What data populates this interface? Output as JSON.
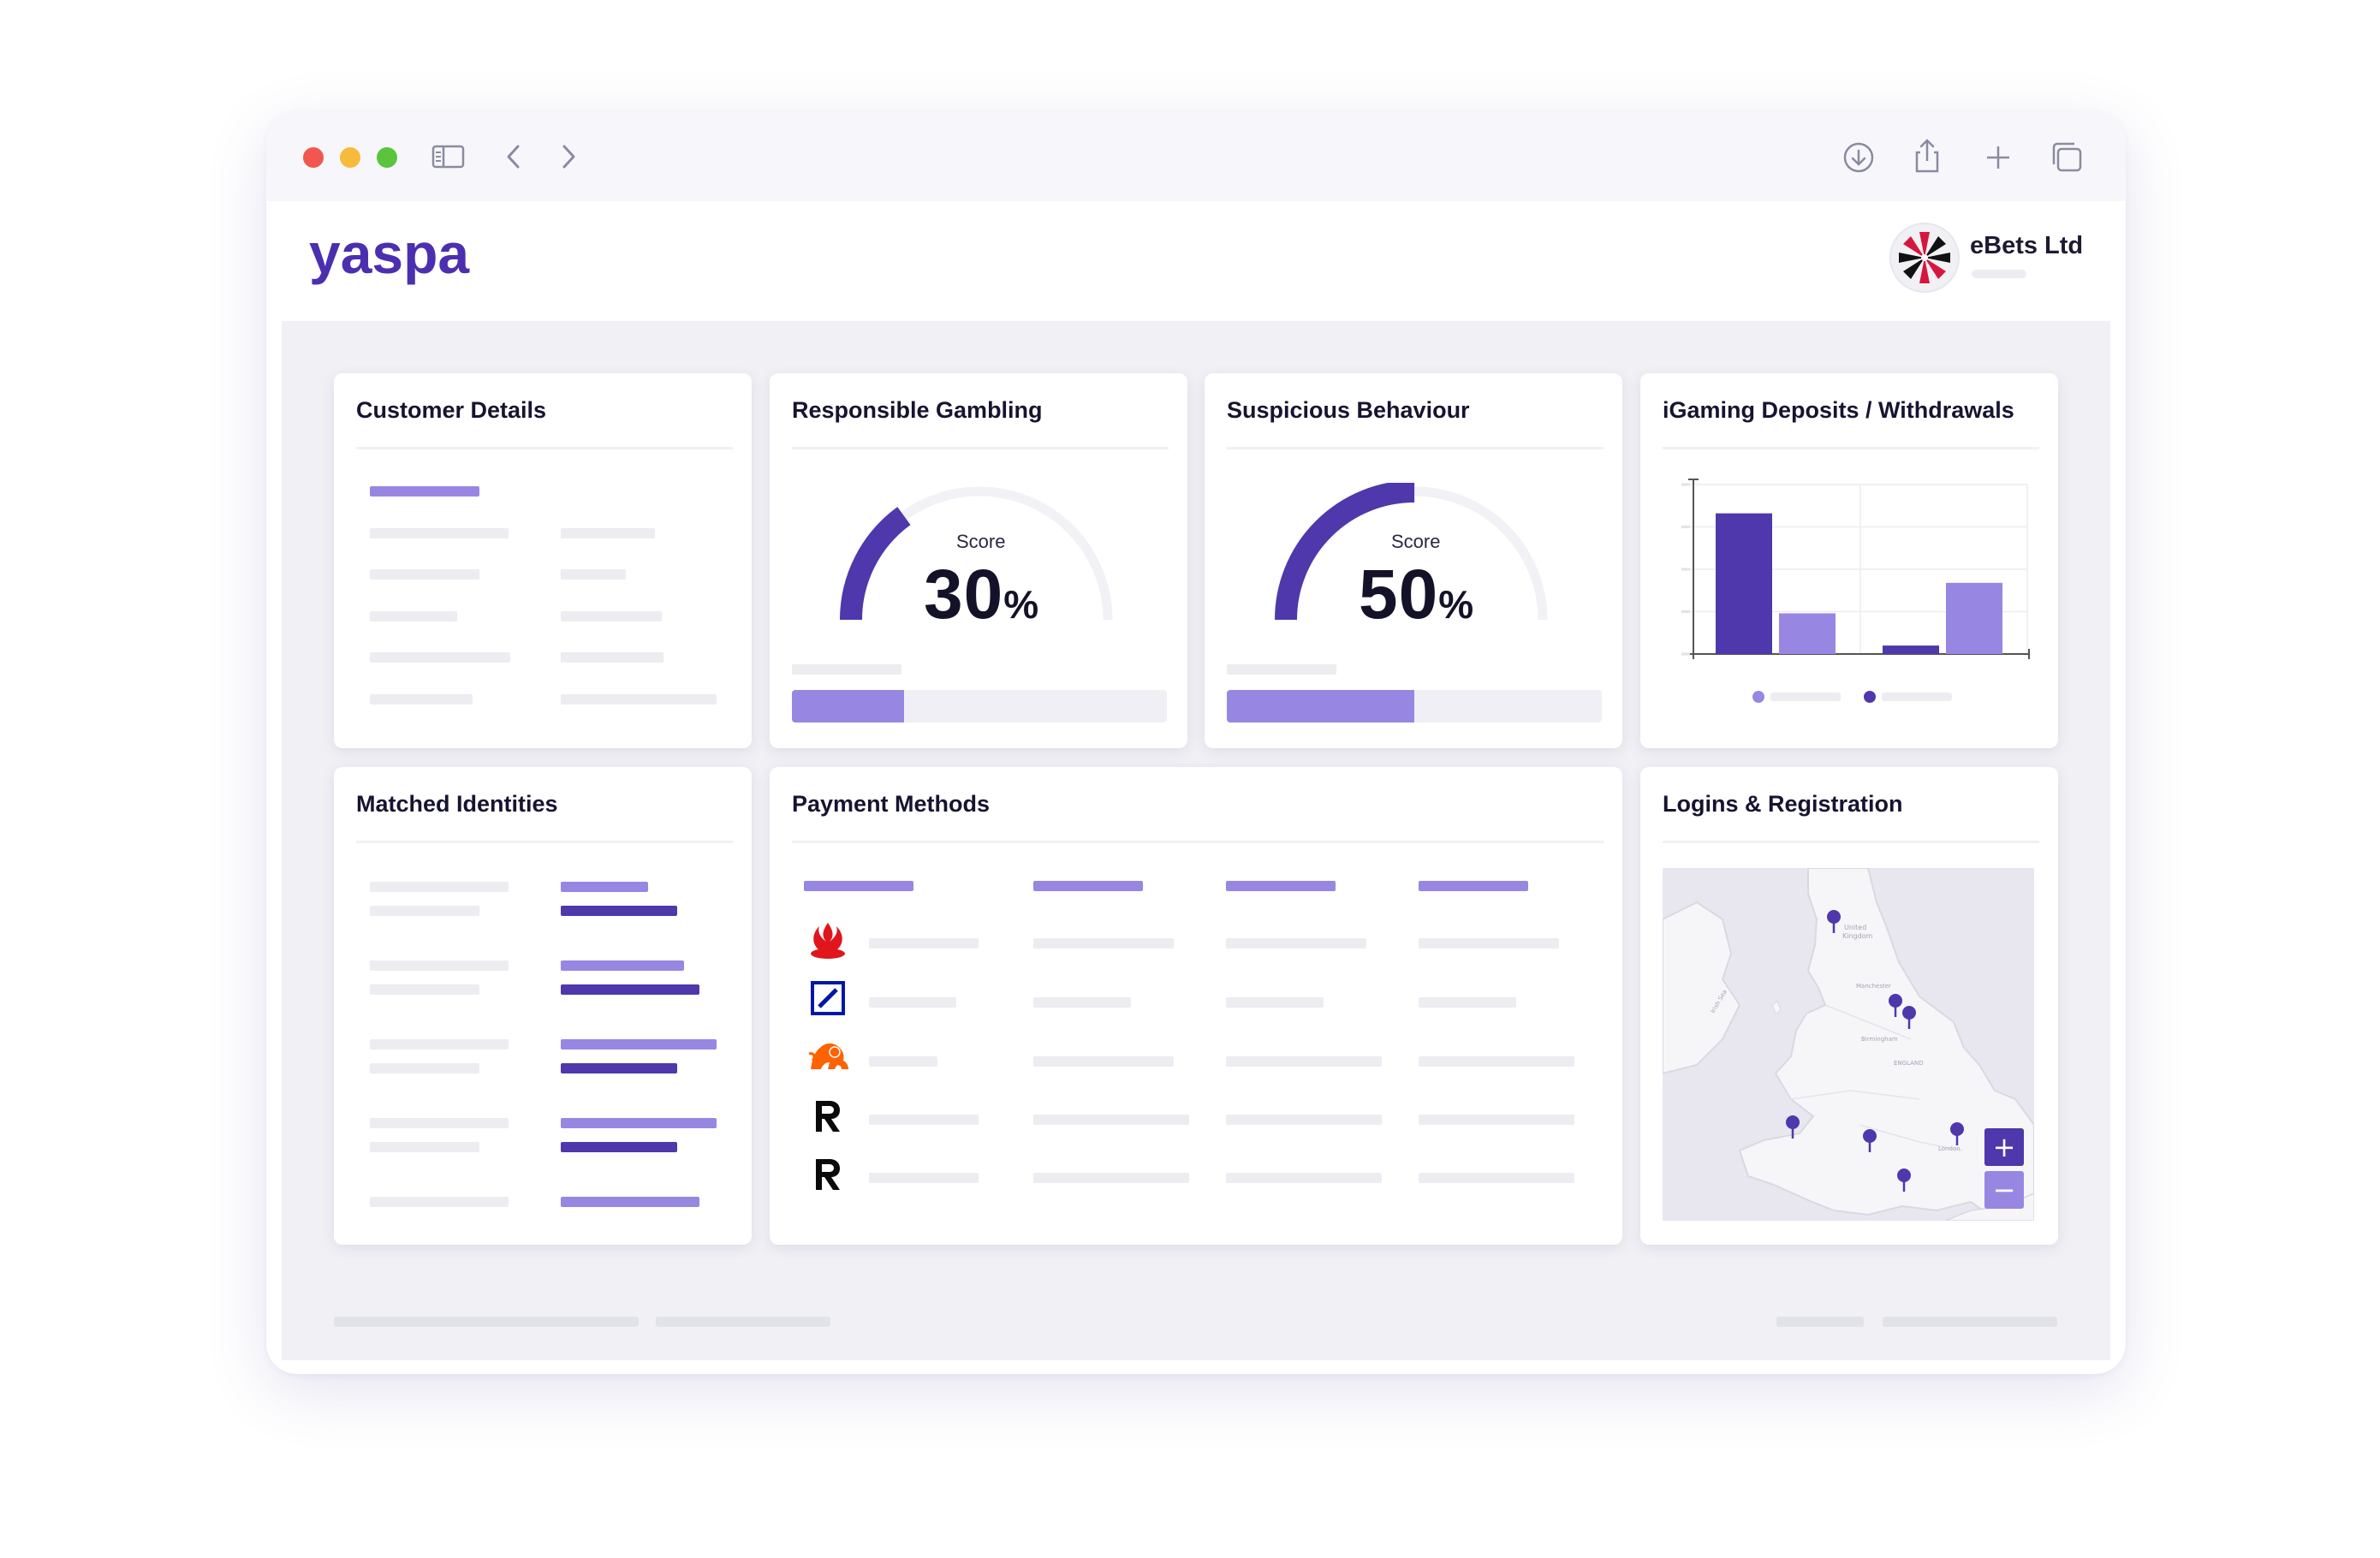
{
  "browser": {
    "traffic_lights": [
      "#f1574e",
      "#f6bb3a",
      "#5ac53c"
    ],
    "icons": [
      "sidebar-icon",
      "back-chevron-icon",
      "forward-chevron-icon",
      "download-icon",
      "share-icon",
      "new-tab-plus-icon",
      "tabs-overview-icon"
    ]
  },
  "header": {
    "brand": "yaspa",
    "brand_color": "#4b2fb0",
    "organisation": "eBets Ltd"
  },
  "cards": {
    "customer_details": {
      "title": "Customer Details"
    },
    "responsible_gambling": {
      "title": "Responsible Gambling",
      "score_label": "Score",
      "score_value": "30",
      "score_unit": "%",
      "score_fraction": 0.3
    },
    "suspicious_behaviour": {
      "title": "Suspicious Behaviour",
      "score_label": "Score",
      "score_value": "50",
      "score_unit": "%",
      "score_fraction": 0.5
    },
    "igaming": {
      "title": "iGaming Deposits / Withdrawals"
    },
    "matched_identities": {
      "title": "Matched Identities"
    },
    "payment_methods": {
      "title": "Payment Methods",
      "bank_icons": [
        "santander-flame-icon",
        "deutsche-bank-icon",
        "ing-lion-icon",
        "revolut-r-icon",
        "revolut-r-icon"
      ]
    },
    "logins": {
      "title": "Logins & Registration",
      "zoom_in": "+",
      "zoom_out": "−",
      "map_pins": 7
    }
  },
  "chart_data": {
    "type": "bar",
    "title": "iGaming Deposits / Withdrawals",
    "categories": [
      "",
      ""
    ],
    "series": [
      {
        "color": "#4e38ac",
        "values": [
          83,
          5
        ]
      },
      {
        "color": "#9886e3",
        "values": [
          24,
          42
        ]
      }
    ],
    "ylim": [
      0,
      100
    ],
    "grid": true,
    "legend": "bottom"
  },
  "colors": {
    "accent": "#4e38ac",
    "accent_light": "#9886e3",
    "placeholder": "#ececf1"
  }
}
